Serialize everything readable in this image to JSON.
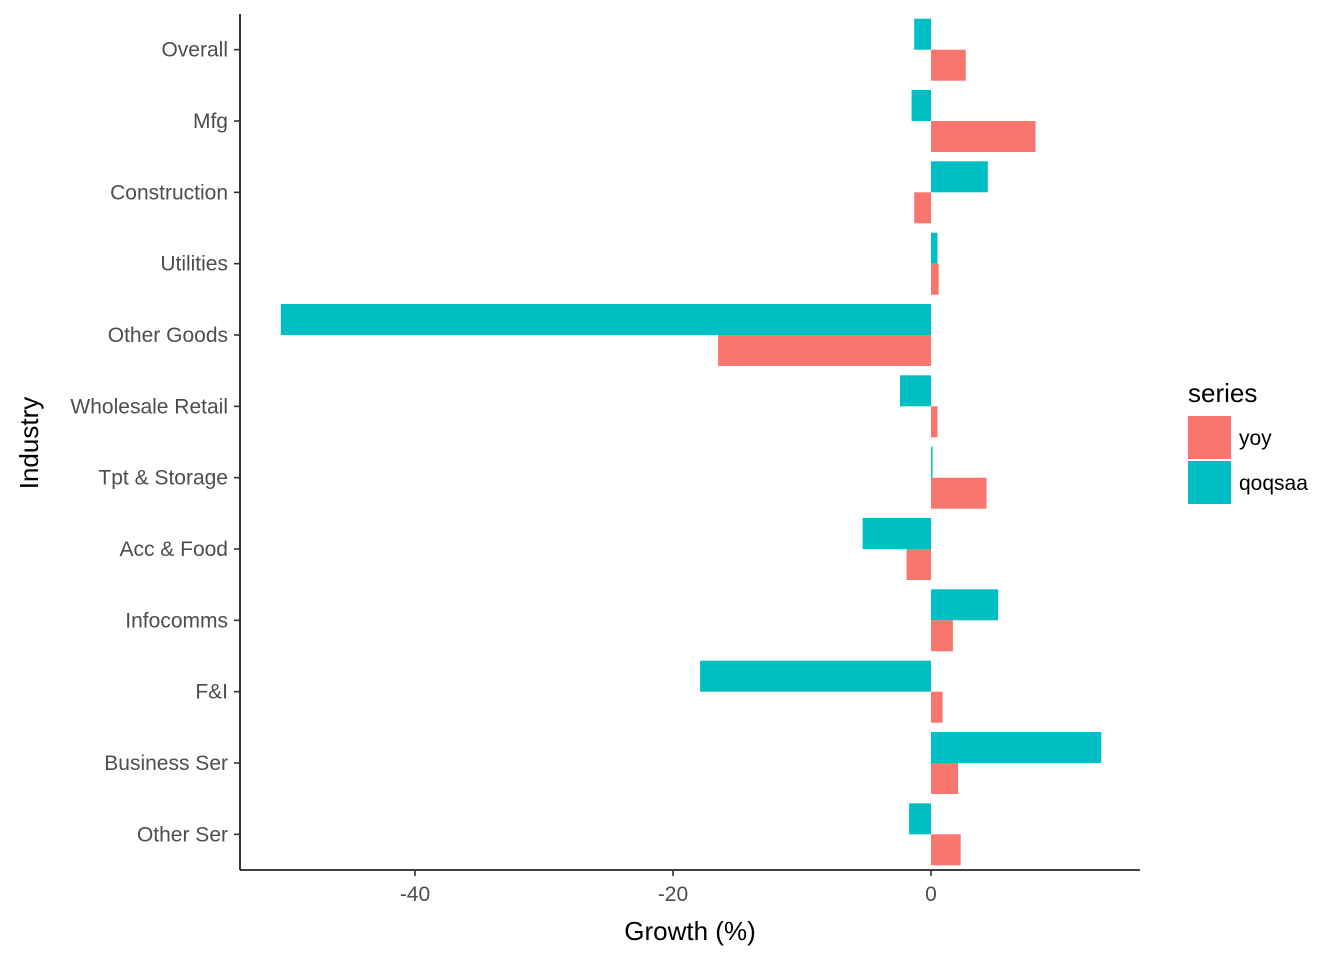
{
  "chart_data": {
    "type": "bar",
    "orientation": "horizontal",
    "title": "",
    "xlabel": "Growth (%)",
    "ylabel": "Industry",
    "categories": [
      "Overall",
      "Mfg",
      "Construction",
      "Utilities",
      "Other Goods",
      "Wholesale Retail",
      "Tpt & Storage",
      "Acc & Food",
      "Infocomms",
      "F&I",
      "Business Ser",
      "Other Ser"
    ],
    "series": [
      {
        "name": "yoy",
        "color": "#F8766D",
        "values": [
          2.7,
          8.1,
          -1.3,
          0.6,
          -16.5,
          0.5,
          4.3,
          -1.9,
          1.7,
          0.9,
          2.1,
          2.3
        ]
      },
      {
        "name": "qoqsaa",
        "color": "#00BFC4",
        "values": [
          -1.3,
          -1.5,
          4.4,
          0.5,
          -50.4,
          -2.4,
          0.1,
          -5.3,
          5.2,
          -17.9,
          13.2,
          -1.7
        ]
      }
    ],
    "xlim": [
      -53,
      16
    ],
    "xticks": [
      -40,
      -20,
      0
    ],
    "grid": false,
    "legend": {
      "title": "series",
      "position": "right"
    }
  }
}
